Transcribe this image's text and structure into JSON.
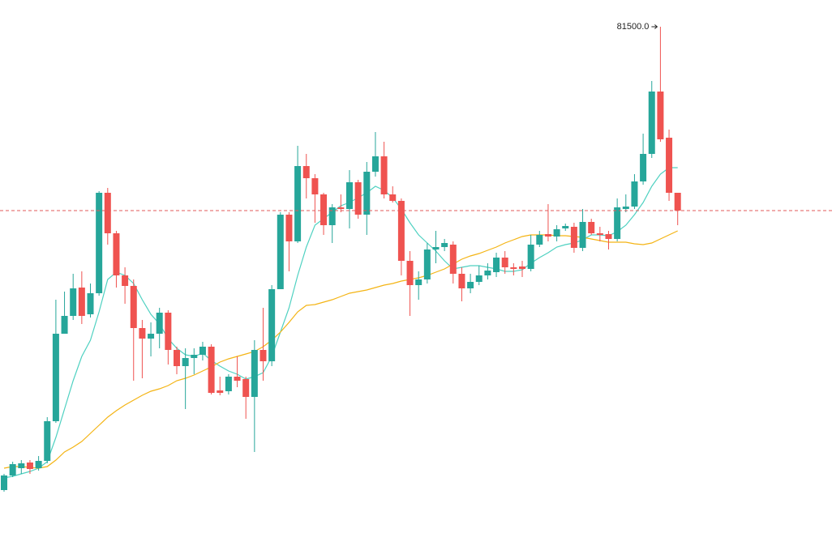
{
  "chart_data": {
    "type": "candlestick",
    "ylim": [
      65350,
      82325
    ],
    "up_color": "#26a69a",
    "down_color": "#ef5350",
    "last_price_line": true,
    "open": [
      67200,
      67650,
      67875,
      68050,
      67875,
      68100,
      69325,
      72025,
      72575,
      73450,
      72625,
      73275,
      76375,
      75125,
      73825,
      73500,
      72200,
      71875,
      72025,
      72675,
      71525,
      71025,
      71275,
      71375,
      71625,
      70275,
      70250,
      70700,
      70625,
      70075,
      71525,
      71175,
      73400,
      75700,
      74875,
      77200,
      76825,
      76325,
      75375,
      75925,
      75875,
      76700,
      75700,
      77025,
      77500,
      76325,
      76125,
      74275,
      73525,
      73700,
      74625,
      74700,
      74775,
      73875,
      73425,
      73625,
      73825,
      73925,
      74375,
      74075,
      74100,
      74025,
      74775,
      75100,
      75025,
      75275,
      75325,
      74675,
      75475,
      75125,
      75100,
      74950,
      75875,
      75950,
      76725,
      77575,
      79500,
      78075,
      76375
    ],
    "high": [
      67700,
      68075,
      68125,
      68125,
      68250,
      69450,
      73075,
      73325,
      73875,
      73950,
      73575,
      76425,
      76525,
      75200,
      74075,
      73700,
      72450,
      72375,
      72825,
      72750,
      71625,
      71575,
      71575,
      71775,
      71700,
      70700,
      70775,
      71325,
      70700,
      71825,
      72825,
      73525,
      75775,
      75775,
      77825,
      77575,
      76950,
      76375,
      76025,
      76325,
      77075,
      76775,
      77325,
      78250,
      77950,
      76575,
      76200,
      74575,
      73950,
      74825,
      75200,
      74950,
      74875,
      74075,
      73875,
      74125,
      74200,
      74525,
      74575,
      74200,
      74275,
      75075,
      75200,
      76025,
      75375,
      75425,
      75450,
      75875,
      75575,
      75325,
      75200,
      76200,
      76325,
      76950,
      78200,
      79825,
      81500,
      78325,
      76375
    ],
    "low": [
      67150,
      67600,
      67700,
      67700,
      67800,
      68025,
      69275,
      72025,
      72450,
      72325,
      72525,
      73200,
      74775,
      73450,
      72950,
      70575,
      70650,
      71325,
      71575,
      71075,
      70775,
      69700,
      70775,
      71200,
      70150,
      70125,
      70150,
      70375,
      69400,
      68375,
      70575,
      71025,
      73400,
      73950,
      74825,
      76200,
      75450,
      75075,
      74825,
      75775,
      75275,
      75575,
      75075,
      76875,
      76200,
      76075,
      73825,
      72575,
      73075,
      73575,
      74200,
      74575,
      73575,
      73025,
      73275,
      73525,
      73700,
      73775,
      73875,
      73825,
      73775,
      73950,
      74700,
      74875,
      74875,
      75200,
      74525,
      74575,
      75075,
      74875,
      74625,
      74875,
      75775,
      75875,
      76625,
      77450,
      77950,
      76125,
      75375
    ],
    "close": [
      67650,
      68000,
      68025,
      67850,
      68100,
      69325,
      72025,
      72575,
      73425,
      72575,
      73275,
      76375,
      75125,
      73825,
      73500,
      72200,
      71875,
      72025,
      72675,
      71525,
      71025,
      71275,
      71375,
      71625,
      70200,
      70200,
      70700,
      70575,
      70075,
      71525,
      71175,
      73400,
      75700,
      74875,
      77200,
      76825,
      76325,
      75375,
      75925,
      75875,
      76700,
      75700,
      77025,
      77500,
      76325,
      76125,
      74275,
      73525,
      73700,
      74625,
      74700,
      74825,
      73875,
      73425,
      73625,
      73825,
      73975,
      74375,
      74075,
      74025,
      74025,
      74775,
      75075,
      75025,
      75250,
      75350,
      74675,
      75475,
      75125,
      75075,
      74950,
      75925,
      75950,
      76725,
      77575,
      79500,
      78025,
      76375,
      75825
    ],
    "series": [
      {
        "color": "#4fd1c1",
        "values": [
          67575,
          67625,
          67700,
          67775,
          67875,
          68075,
          68825,
          69700,
          70575,
          71325,
          71825,
          72700,
          73700,
          73925,
          73825,
          73575,
          73075,
          72625,
          72325,
          71875,
          71575,
          71375,
          71325,
          71425,
          71200,
          71025,
          70875,
          70775,
          70625,
          70700,
          70825,
          71325,
          72075,
          72825,
          73825,
          74700,
          75375,
          75575,
          75775,
          75975,
          76075,
          76225,
          76375,
          76575,
          76450,
          76225,
          75875,
          75450,
          75075,
          74825,
          74575,
          74275,
          74025,
          74075,
          74125,
          74125,
          74075,
          74025,
          73950,
          73950,
          74000,
          74200,
          74375,
          74525,
          74700,
          74775,
          74825,
          74925,
          75075,
          75075,
          75050,
          75175,
          75375,
          75700,
          76075,
          76575,
          76950,
          77150,
          77150
        ]
      },
      {
        "color": "#f4b414",
        "values": [
          67875,
          67925,
          67925,
          67900,
          67875,
          67925,
          68125,
          68375,
          68525,
          68700,
          68950,
          69200,
          69450,
          69650,
          69825,
          69975,
          70125,
          70250,
          70325,
          70425,
          70575,
          70650,
          70750,
          70875,
          71000,
          71150,
          71250,
          71325,
          71400,
          71475,
          71625,
          71825,
          72075,
          72375,
          72700,
          72900,
          72925,
          73000,
          73075,
          73175,
          73275,
          73325,
          73375,
          73450,
          73525,
          73575,
          73650,
          73700,
          73750,
          73825,
          73925,
          74025,
          74175,
          74325,
          74425,
          74500,
          74600,
          74700,
          74825,
          74925,
          75025,
          75075,
          75075,
          75075,
          75050,
          75050,
          75025,
          75000,
          74950,
          74900,
          74850,
          74850,
          74850,
          74800,
          74775,
          74825,
          74950,
          75075,
          75200
        ]
      }
    ],
    "annotations": [
      {
        "text": "81500.0"
      }
    ]
  }
}
